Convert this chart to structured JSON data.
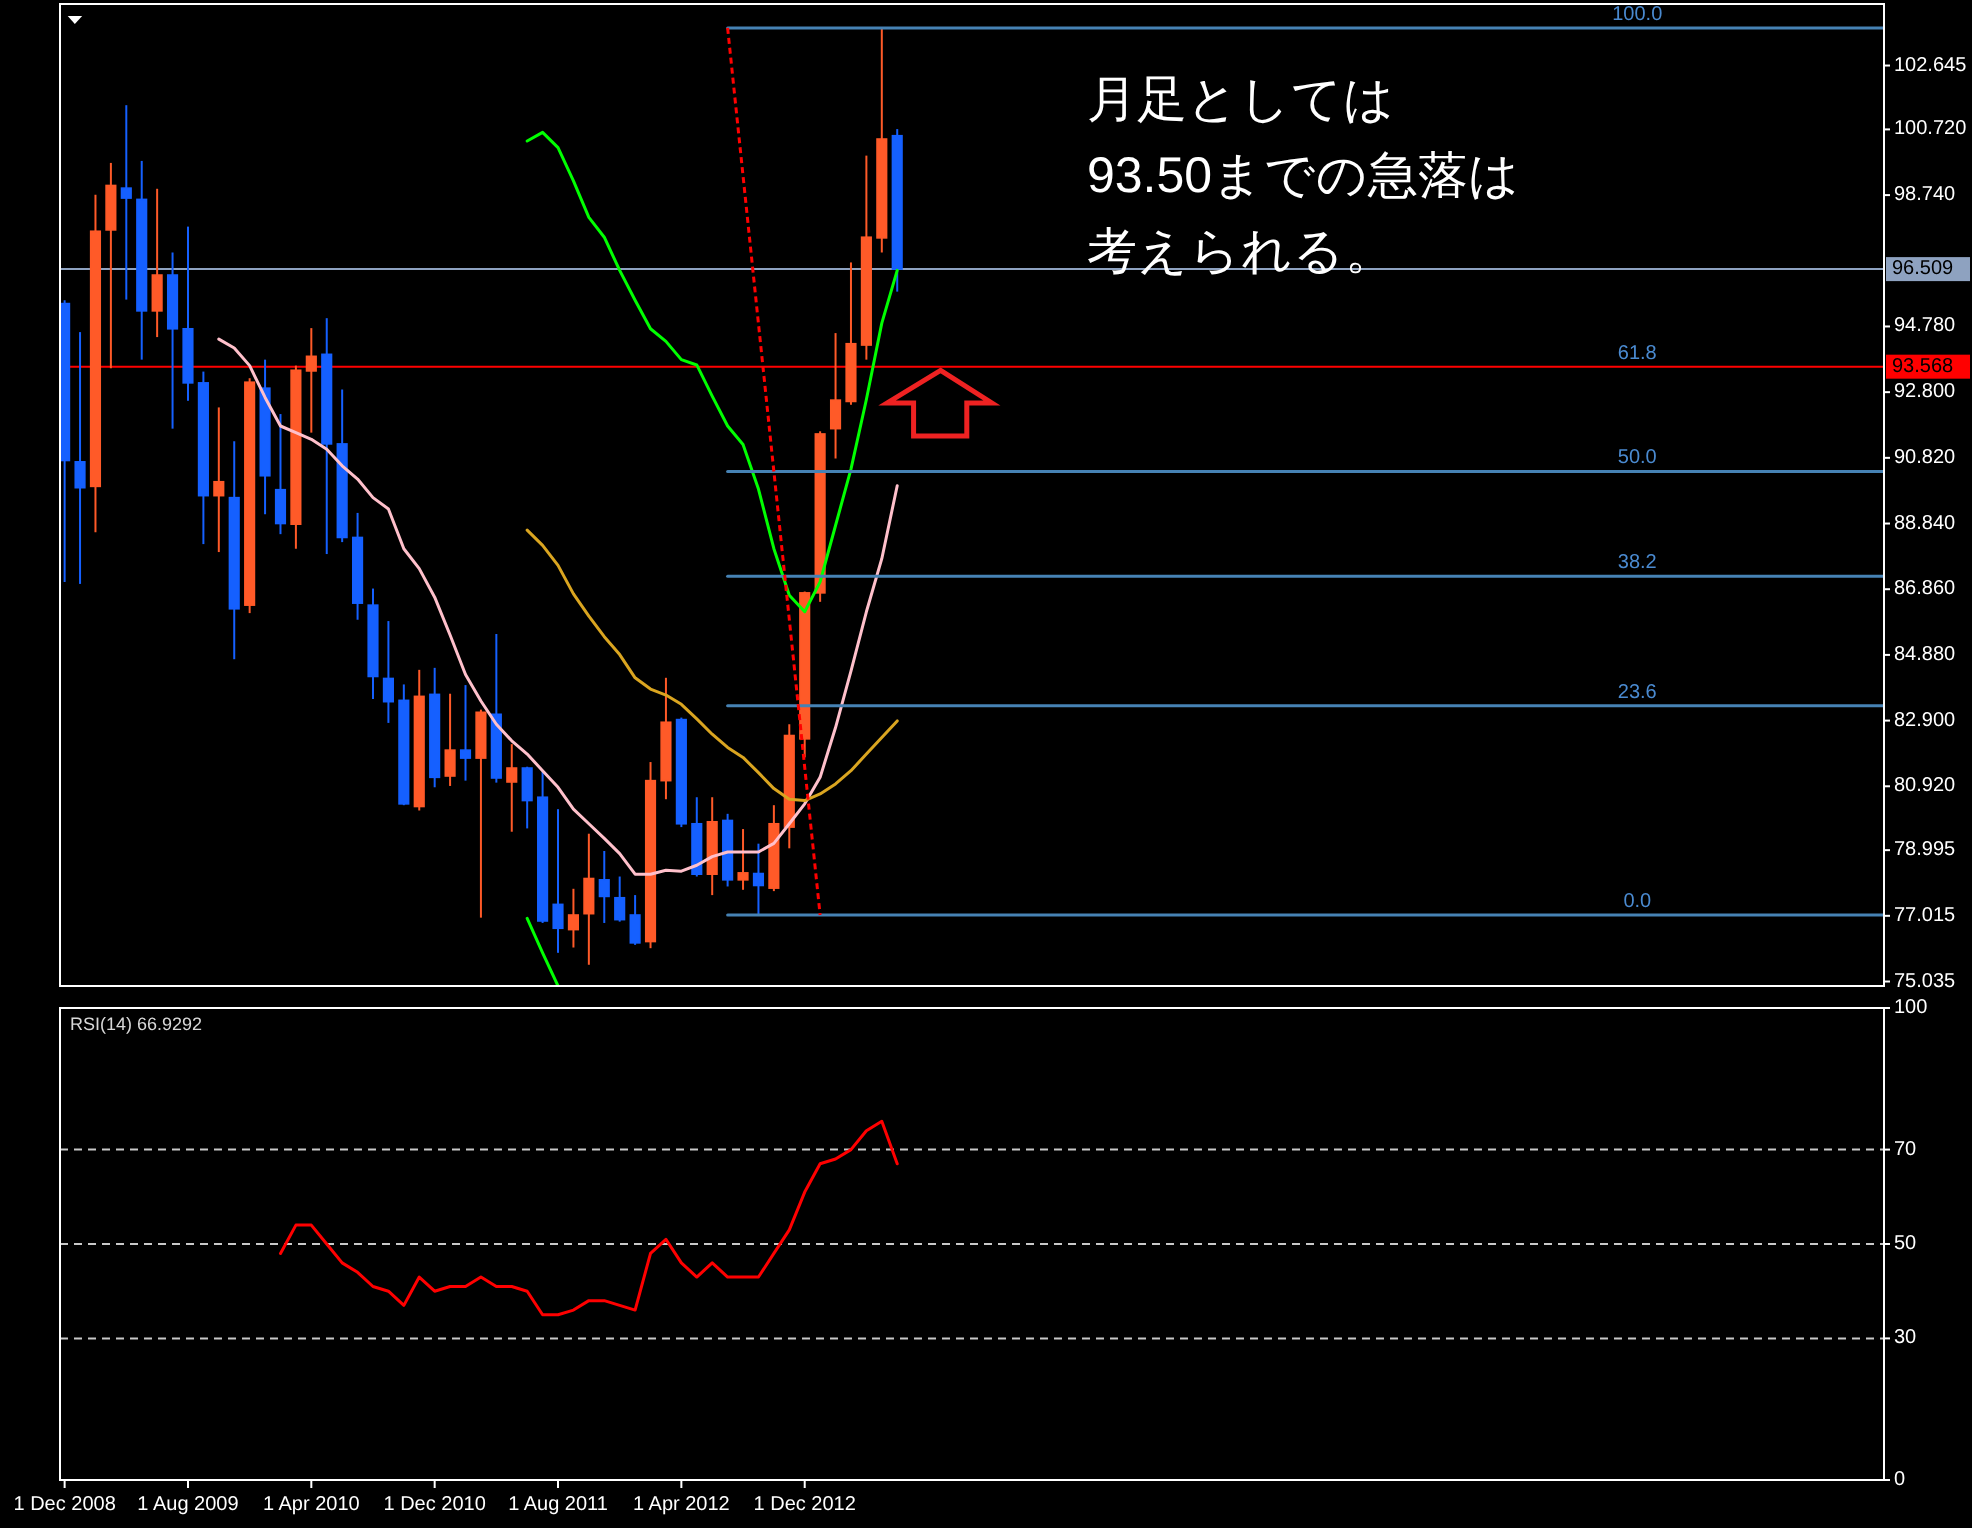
{
  "chart_data": [
    {
      "type": "candlestick",
      "xlim": [
        "2008-11-22",
        "2018-10"
      ],
      "ylim": [
        74.9,
        104.5
      ],
      "tick_labels": "y",
      "yticks": [
        102.645,
        {
          "value": 100.72,
          "label": "100.720"
        },
        {
          "value": 98.74,
          "label": "98.740"
        },
        {
          "value": 94.78,
          "label": "94.780"
        },
        {
          "value": 92.8,
          "label": "92.800"
        },
        {
          "value": 90.82,
          "label": "90.820"
        },
        {
          "value": 88.84,
          "label": "88.840"
        },
        {
          "value": 86.86,
          "label": "86.860"
        },
        {
          "value": 84.88,
          "label": "84.880"
        },
        {
          "value": 82.9,
          "label": "82.900"
        },
        {
          "value": 80.92,
          "label": "80.920"
        },
        78.995,
        77.015,
        75.035
      ],
      "ref_lines": [
        {
          "axis": "y",
          "value": 96.509,
          "label": "96.509",
          "color": "#8ea2c0"
        },
        {
          "axis": "y",
          "value": 93.568,
          "label": "93.568",
          "color": "#ff0000"
        }
      ],
      "series": [
        {
          "x": [
            "2008-12",
            "2009-01",
            "2009-02",
            "2009-03",
            "2009-04",
            "2009-05",
            "2009-06",
            "2009-07",
            "2009-08",
            "2009-09",
            "2009-10",
            "2009-11",
            "2009-12",
            "2010-01",
            "2010-02",
            "2010-03",
            "2010-04",
            "2010-05",
            "2010-06",
            "2010-07",
            "2010-08",
            "2010-09",
            "2010-10",
            "2010-11",
            "2010-12",
            "2011-01",
            "2011-02",
            "2011-03",
            "2011-04",
            "2011-05",
            "2011-06",
            "2011-07",
            "2011-08",
            "2011-09",
            "2011-10",
            "2011-11",
            "2011-12",
            "2012-01",
            "2012-02",
            "2012-03",
            "2012-04",
            "2012-05",
            "2012-06",
            "2012-07",
            "2012-08",
            "2012-09",
            "2012-10",
            "2012-11",
            "2012-12",
            "2013-01",
            "2013-02",
            "2013-03",
            "2013-04",
            "2013-05",
            "2013-06"
          ],
          "ohlc": [
            [
              95.47,
              95.57,
              87.08,
              90.74
            ],
            [
              90.7,
              94.61,
              87.02,
              89.92
            ],
            [
              89.96,
              98.75,
              88.58,
              97.65
            ],
            [
              97.69,
              99.71,
              93.52,
              99.03
            ],
            [
              98.95,
              101.45,
              95.59,
              98.65
            ],
            [
              98.61,
              99.77,
              93.78,
              95.25
            ],
            [
              95.25,
              98.93,
              94.46,
              96.33
            ],
            [
              96.33,
              97.01,
              91.7,
              94.71
            ],
            [
              94.71,
              97.79,
              92.54,
              93.08
            ],
            [
              93.08,
              93.42,
              88.22,
              89.68
            ],
            [
              89.68,
              92.34,
              87.98,
              90.1
            ],
            [
              89.62,
              91.32,
              84.75,
              86.27
            ],
            [
              86.38,
              93.22,
              86.14,
              93.1
            ],
            [
              92.92,
              93.78,
              89.12,
              90.28
            ],
            [
              89.86,
              92.14,
              88.52,
              88.84
            ],
            [
              88.82,
              93.6,
              88.08,
              93.46
            ],
            [
              93.44,
              94.73,
              91.58,
              93.88
            ],
            [
              93.94,
              95.03,
              87.92,
              91.24
            ],
            [
              91.24,
              92.88,
              88.28,
              88.42
            ],
            [
              88.42,
              89.16,
              85.94,
              86.44
            ],
            [
              86.38,
              86.88,
              83.55,
              84.23
            ],
            [
              84.17,
              85.9,
              82.83,
              83.47
            ],
            [
              83.51,
              83.99,
              80.35,
              80.39
            ],
            [
              80.31,
              84.43,
              80.19,
              83.63
            ],
            [
              83.69,
              84.49,
              80.89,
              81.19
            ],
            [
              81.23,
              83.71,
              80.93,
              82.01
            ],
            [
              82.01,
              83.97,
              81.09,
              81.77
            ],
            [
              81.77,
              83.23,
              76.96,
              83.15
            ],
            [
              83.09,
              85.51,
              81.03,
              81.17
            ],
            [
              81.05,
              82.19,
              79.55,
              81.47
            ],
            [
              81.47,
              81.51,
              79.65,
              80.49
            ],
            [
              80.59,
              81.39,
              76.8,
              76.86
            ],
            [
              77.36,
              80.23,
              75.9,
              76.64
            ],
            [
              76.6,
              77.83,
              76.06,
              77.04
            ],
            [
              77.08,
              79.49,
              75.54,
              78.14
            ],
            [
              78.1,
              78.97,
              76.8,
              77.6
            ],
            [
              77.56,
              78.2,
              76.84,
              76.9
            ],
            [
              77.04,
              77.64,
              76.14,
              76.2
            ],
            [
              76.24,
              81.65,
              76.04,
              81.09
            ],
            [
              81.09,
              84.19,
              80.53,
              82.85
            ],
            [
              82.93,
              82.99,
              79.69,
              79.79
            ],
            [
              79.79,
              80.59,
              78.2,
              78.27
            ],
            [
              78.27,
              80.59,
              77.64,
              79.85
            ],
            [
              79.89,
              80.09,
              77.9,
              78.1
            ],
            [
              78.1,
              79.63,
              77.8,
              78.31
            ],
            [
              78.29,
              79.19,
              77.04,
              77.93
            ],
            [
              77.85,
              80.35,
              77.76,
              79.79
            ],
            [
              79.69,
              82.79,
              79.05,
              82.45
            ],
            [
              82.35,
              86.79,
              81.79,
              86.75
            ],
            [
              86.75,
              91.62,
              86.48,
              91.54
            ],
            [
              91.7,
              94.58,
              90.8,
              92.56
            ],
            [
              92.52,
              96.71,
              92.42,
              94.26
            ],
            [
              94.22,
              99.93,
              93.78,
              97.47
            ],
            [
              97.45,
              103.8,
              97.01,
              100.43
            ],
            [
              100.53,
              100.73,
              95.83,
              96.51
            ]
          ],
          "colors": [
            "#1560ff",
            "#1560ff",
            "#ff5a28",
            "#ff5a28",
            "#1560ff",
            "#1560ff",
            "#ff5a28",
            "#1560ff",
            "#1560ff",
            "#1560ff",
            "#ff5a28",
            "#1560ff",
            "#ff5a28",
            "#1560ff",
            "#1560ff",
            "#ff5a28",
            "#ff5a28",
            "#1560ff",
            "#1560ff",
            "#1560ff",
            "#1560ff",
            "#1560ff",
            "#1560ff",
            "#ff5a28",
            "#1560ff",
            "#ff5a28",
            "#1560ff",
            "#ff5a28",
            "#1560ff",
            "#ff5a28",
            "#1560ff",
            "#1560ff",
            "#1560ff",
            "#ff5a28",
            "#ff5a28",
            "#1560ff",
            "#1560ff",
            "#1560ff",
            "#ff5a28",
            "#ff5a28",
            "#1560ff",
            "#1560ff",
            "#ff5a28",
            "#1560ff",
            "#ff5a28",
            "#1560ff",
            "#ff5a28",
            "#ff5a28",
            "#ff5a28",
            "#ff5a28",
            "#ff5a28",
            "#ff5a28",
            "#ff5a28",
            "#ff5a28",
            "#1560ff"
          ]
        },
        {
          "type": "line",
          "color": "#ffc0cb",
          "x": [
            "2009-10",
            "2009-11",
            "2009-12",
            "2010-01",
            "2010-02",
            "2010-03",
            "2010-04",
            "2010-05",
            "2010-06",
            "2010-07",
            "2010-08",
            "2010-09",
            "2010-10",
            "2010-11",
            "2010-12",
            "2011-01",
            "2011-02",
            "2011-03",
            "2011-04",
            "2011-05",
            "2011-06",
            "2011-07",
            "2011-08",
            "2011-09",
            "2011-10",
            "2011-11",
            "2011-12",
            "2012-01",
            "2012-02",
            "2012-03",
            "2012-04",
            "2012-05",
            "2012-06",
            "2012-07",
            "2012-08",
            "2012-09",
            "2012-10",
            "2012-11",
            "2012-12",
            "2013-01",
            "2013-02",
            "2013-03",
            "2013-04",
            "2013-05",
            "2013-06"
          ],
          "values": [
            94.4,
            94.13,
            93.6,
            92.64,
            91.78,
            91.58,
            91.38,
            91.08,
            90.58,
            90.18,
            89.62,
            89.28,
            88.08,
            87.48,
            86.62,
            85.48,
            84.29,
            83.49,
            82.79,
            82.29,
            81.89,
            81.39,
            80.89,
            80.23,
            79.79,
            79.35,
            78.89,
            78.27,
            78.27,
            78.39,
            78.36,
            78.54,
            78.8,
            78.94,
            78.94,
            78.94,
            79.2,
            79.79,
            80.39,
            81.19,
            82.69,
            84.39,
            86.18,
            87.78,
            89.98
          ]
        },
        {
          "type": "line",
          "color": "#daa520",
          "x": [
            "2011-06",
            "2011-07",
            "2011-08",
            "2011-09",
            "2011-10",
            "2011-11",
            "2011-12",
            "2012-01",
            "2012-02",
            "2012-03",
            "2012-04",
            "2012-05",
            "2012-06",
            "2012-07",
            "2012-08",
            "2012-09",
            "2012-10",
            "2012-11",
            "2012-12",
            "2013-01",
            "2013-02",
            "2013-03",
            "2013-04",
            "2013-05",
            "2013-06"
          ],
          "values": [
            88.64,
            88.18,
            87.58,
            86.72,
            86.05,
            85.43,
            84.89,
            84.19,
            83.85,
            83.67,
            83.39,
            82.95,
            82.49,
            82.09,
            81.79,
            81.33,
            80.85,
            80.53,
            80.49,
            80.69,
            80.99,
            81.39,
            81.89,
            82.39,
            82.89
          ]
        },
        {
          "type": "line",
          "color": "#00ff00",
          "x": [
            "2011-06",
            "2011-07",
            "2011-08",
            "2011-09",
            "2011-10",
            "2011-11",
            "2011-12",
            "2012-01",
            "2012-02",
            "2012-03",
            "2012-04",
            "2012-05",
            "2012-06",
            "2012-07",
            "2012-08",
            "2012-09",
            "2012-10",
            "2012-11",
            "2012-12",
            "2013-01",
            "2013-02",
            "2013-03",
            "2013-04",
            "2013-05",
            "2013-06"
          ],
          "values": [
            100.37,
            100.63,
            100.17,
            99.17,
            98.07,
            97.47,
            96.47,
            95.57,
            94.71,
            94.33,
            93.78,
            93.62,
            92.68,
            91.78,
            91.22,
            89.88,
            88.08,
            86.68,
            86.18,
            87.08,
            88.78,
            90.48,
            92.58,
            94.88,
            96.47
          ]
        },
        {
          "type": "line",
          "color": "#00ff00",
          "x": [
            "2011-06",
            "2011-07",
            "2011-08"
          ],
          "values": [
            76.94,
            75.9,
            74.9
          ]
        },
        {
          "type": "line",
          "color": "#4682b4",
          "x": [
            "2012-07",
            "2018-10"
          ],
          "values": [
            103.78,
            103.78
          ]
        },
        {
          "type": "line",
          "color": "#4682b4",
          "x": [
            "2012-07",
            "2018-10"
          ],
          "values": [
            90.41,
            90.41
          ]
        },
        {
          "type": "line",
          "color": "#4682b4",
          "x": [
            "2012-07",
            "2018-10"
          ],
          "values": [
            87.25,
            87.25
          ]
        },
        {
          "type": "line",
          "color": "#4682b4",
          "x": [
            "2012-07",
            "2018-10"
          ],
          "values": [
            83.35,
            83.35
          ]
        },
        {
          "type": "line",
          "color": "#4682b4",
          "x": [
            "2012-07",
            "2018-10"
          ],
          "values": [
            77.04,
            77.04
          ]
        },
        {
          "type": "line",
          "color": "#ff0000",
          "line_style": "dotted",
          "x": [
            "2012-07",
            "2013-01"
          ],
          "values": [
            103.78,
            77.04
          ]
        }
      ],
      "annotations": [
        "月足としては",
        "93.50までの急落は",
        "考えられる。",
        {
          "text": "100.0",
          "x": "2017-06",
          "y": 103.78
        },
        {
          "text": "61.8",
          "x": "2017-06",
          "y": 93.568
        },
        {
          "text": "50.0",
          "x": "2017-06",
          "y": 90.41
        },
        {
          "text": "38.2",
          "x": "2017-06",
          "y": 87.25
        },
        {
          "text": "23.6",
          "x": "2017-06",
          "y": 83.35
        },
        {
          "text": "0.0",
          "x": "2017-06",
          "y": 77.04
        }
      ]
    },
    {
      "type": "line",
      "title": "RSI(14) 66.9292",
      "color": "#ff0000",
      "xlim": [
        "2008-11-22",
        "2018-10"
      ],
      "ylim": [
        0,
        100
      ],
      "yticks": [
        0,
        30,
        50,
        70,
        100
      ],
      "xticks": [
        {
          "value": "2008-12-01",
          "label": "1 Dec 2008"
        },
        {
          "value": "2009-08-01",
          "label": "1 Aug 2009"
        },
        {
          "value": "2010-04-01",
          "label": "1 Apr 2010"
        },
        {
          "value": "2010-12-01",
          "label": "1 Dec 2010"
        },
        {
          "value": "2011-08-01",
          "label": "1 Aug 2011"
        },
        {
          "value": "2012-04-01",
          "label": "1 Apr 2012"
        },
        {
          "value": "2012-12-01",
          "label": "1 Dec 2012"
        }
      ],
      "ref_lines": [
        {
          "axis": "y",
          "value": 70,
          "color": "#c8c8c8",
          "line_style": "dashed"
        },
        {
          "axis": "y",
          "value": 50,
          "color": "#c8c8c8",
          "line_style": "dashed"
        },
        {
          "axis": "y",
          "value": 30,
          "color": "#c8c8c8",
          "line_style": "dashed"
        }
      ],
      "x": [
        "2010-02",
        "2010-03",
        "2010-04",
        "2010-05",
        "2010-06",
        "2010-07",
        "2010-08",
        "2010-09",
        "2010-10",
        "2010-11",
        "2010-12",
        "2011-01",
        "2011-02",
        "2011-03",
        "2011-04",
        "2011-05",
        "2011-06",
        "2011-07",
        "2011-08",
        "2011-09",
        "2011-10",
        "2011-11",
        "2011-12",
        "2012-01",
        "2012-02",
        "2012-03",
        "2012-04",
        "2012-05",
        "2012-06",
        "2012-07",
        "2012-08",
        "2012-09",
        "2012-10",
        "2012-11",
        "2012-12",
        "2013-01",
        "2013-02",
        "2013-03",
        "2013-04",
        "2013-05",
        "2013-06"
      ],
      "values": [
        48,
        54,
        54,
        50,
        46,
        44,
        41,
        40,
        37,
        43,
        40,
        41,
        41,
        43,
        41,
        41,
        40,
        35,
        35,
        36,
        38,
        38,
        37,
        36,
        48,
        51,
        46,
        43,
        46,
        43,
        43,
        43,
        48,
        53,
        61,
        67,
        68,
        70,
        74,
        76,
        67
      ]
    }
  ]
}
